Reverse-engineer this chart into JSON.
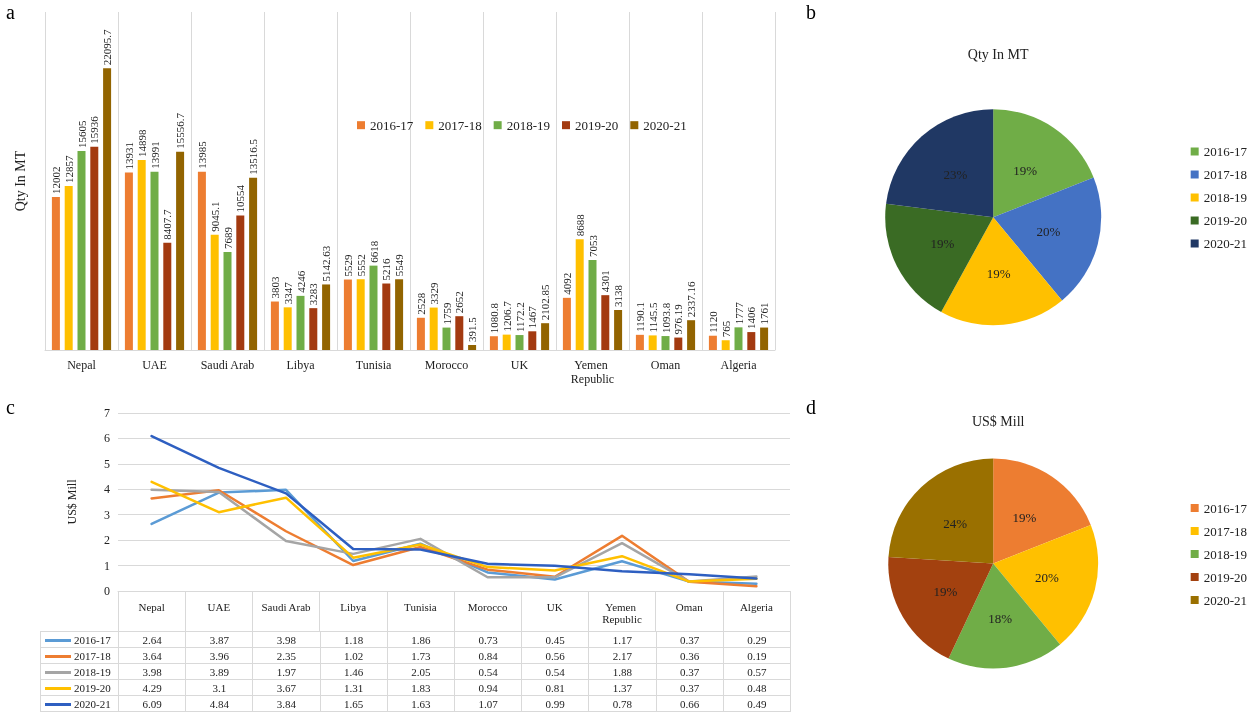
{
  "chart_data": [
    {
      "type": "bar",
      "ylabel": "Qty In MT",
      "annotations": [
        "a"
      ],
      "grid": "x",
      "legend": "top right",
      "tick_labels": "x",
      "categories": [
        "Nepal",
        "UAE",
        "Saudi Arab",
        "Libya",
        "Tunisia",
        "Morocco",
        "UK",
        "Yemen Republic",
        "Oman",
        "Algeria"
      ],
      "series": [
        {
          "name": "2016-17",
          "color": "#ed7d31",
          "values": [
            12002,
            13931,
            13985,
            3803,
            5529,
            2528,
            1080.8,
            4092,
            1190.1,
            1120
          ],
          "value_labels": [
            "12002",
            "13931",
            "13985",
            "3803",
            "5529",
            "2528",
            "1080.8",
            "4092",
            "1190.1",
            "1120"
          ]
        },
        {
          "name": "2017-18",
          "color": "#ffc000",
          "values": [
            12857,
            14898,
            9045.1,
            3347,
            5552,
            3329,
            1206.7,
            8688,
            1145.5,
            765
          ],
          "value_labels": [
            "12857",
            "14898",
            "9045.1",
            "3347",
            "5552",
            "3329",
            "1206.7",
            "8688",
            "1145.5",
            "765"
          ]
        },
        {
          "name": "2018-19",
          "color": "#70ad47",
          "values": [
            15605,
            13991,
            7689,
            4246,
            6618,
            1759,
            1172.2,
            7053,
            1093.8,
            1777
          ],
          "value_labels": [
            "15605",
            "13991",
            "7689",
            "4246",
            "6618",
            "1759",
            "1172.2",
            "7053",
            "1093.8",
            "1777"
          ]
        },
        {
          "name": "2019-20",
          "color": "#a33a10",
          "values": [
            15936,
            8407.7,
            10554,
            3283,
            5216,
            2652,
            1467,
            4301,
            976.19,
            1406
          ],
          "value_labels": [
            "15936",
            "8407.7",
            "10554",
            "3283",
            "5216",
            "2652",
            "1467",
            "4301",
            "976.19",
            "1406"
          ]
        },
        {
          "name": "2020-21",
          "color": "#926400",
          "values": [
            22095.7,
            15556.7,
            13516.5,
            5142.63,
            5549,
            391.5,
            2102.85,
            3138,
            2337.16,
            1761
          ],
          "value_labels": [
            "22095.7",
            "15556.7",
            "13516.5",
            "5142.63",
            "5549",
            "391.5",
            "2102.85",
            "3138",
            "2337.16",
            "1761"
          ]
        }
      ]
    },
    {
      "type": "pie",
      "title": "Qty In MT",
      "annotations": [
        "b"
      ],
      "legend": "right",
      "categories": [
        "2016-17",
        "2017-18",
        "2018-19",
        "2019-20",
        "2020-21"
      ],
      "values": [
        19,
        20,
        19,
        19,
        23
      ],
      "colors": [
        "#70ad47",
        "#4472c4",
        "#ffc000",
        "#3a6b24",
        "#203864"
      ],
      "value_labels": [
        "19%",
        "20%",
        "19%",
        "19%",
        "23%"
      ]
    },
    {
      "type": "line",
      "ylabel": "US$ Mill",
      "annotations": [
        "c"
      ],
      "grid": "y",
      "legend": "bottom",
      "data_labels": true,
      "ylim": [
        0,
        7
      ],
      "yticks": [
        0,
        1,
        2,
        3,
        4,
        5,
        6,
        7
      ],
      "categories": [
        "Nepal",
        "UAE",
        "Saudi Arab",
        "Libya",
        "Tunisia",
        "Morocco",
        "UK",
        "Yemen Republic",
        "Oman",
        "Algeria"
      ],
      "series": [
        {
          "name": "2016-17",
          "color": "#5b9bd5",
          "values": [
            2.64,
            3.87,
            3.98,
            1.18,
            1.86,
            0.73,
            0.45,
            1.17,
            0.37,
            0.29
          ]
        },
        {
          "name": "2017-18",
          "color": "#ed7d31",
          "values": [
            3.64,
            3.96,
            2.35,
            1.02,
            1.73,
            0.84,
            0.56,
            2.17,
            0.36,
            0.19
          ]
        },
        {
          "name": "2018-19",
          "color": "#a5a5a5",
          "values": [
            3.98,
            3.89,
            1.97,
            1.46,
            2.05,
            0.54,
            0.54,
            1.88,
            0.37,
            0.57
          ]
        },
        {
          "name": "2019-20",
          "color": "#ffc000",
          "values": [
            4.29,
            3.1,
            3.67,
            1.31,
            1.83,
            0.94,
            0.81,
            1.37,
            0.37,
            0.48
          ]
        },
        {
          "name": "2020-21",
          "color": "#2e5fc1",
          "values": [
            6.09,
            4.84,
            3.84,
            1.65,
            1.63,
            1.07,
            0.99,
            0.78,
            0.66,
            0.49
          ]
        }
      ]
    },
    {
      "type": "pie",
      "title": "US$ Mill",
      "annotations": [
        "d"
      ],
      "legend": "right",
      "categories": [
        "2016-17",
        "2017-18",
        "2018-19",
        "2019-20",
        "2020-21"
      ],
      "values": [
        19,
        20,
        18,
        19,
        24
      ],
      "colors": [
        "#ed7d31",
        "#ffc000",
        "#70ad47",
        "#a3410f",
        "#9a7000"
      ],
      "value_labels": [
        "19%",
        "20%",
        "18%",
        "19%",
        "24%"
      ]
    }
  ]
}
